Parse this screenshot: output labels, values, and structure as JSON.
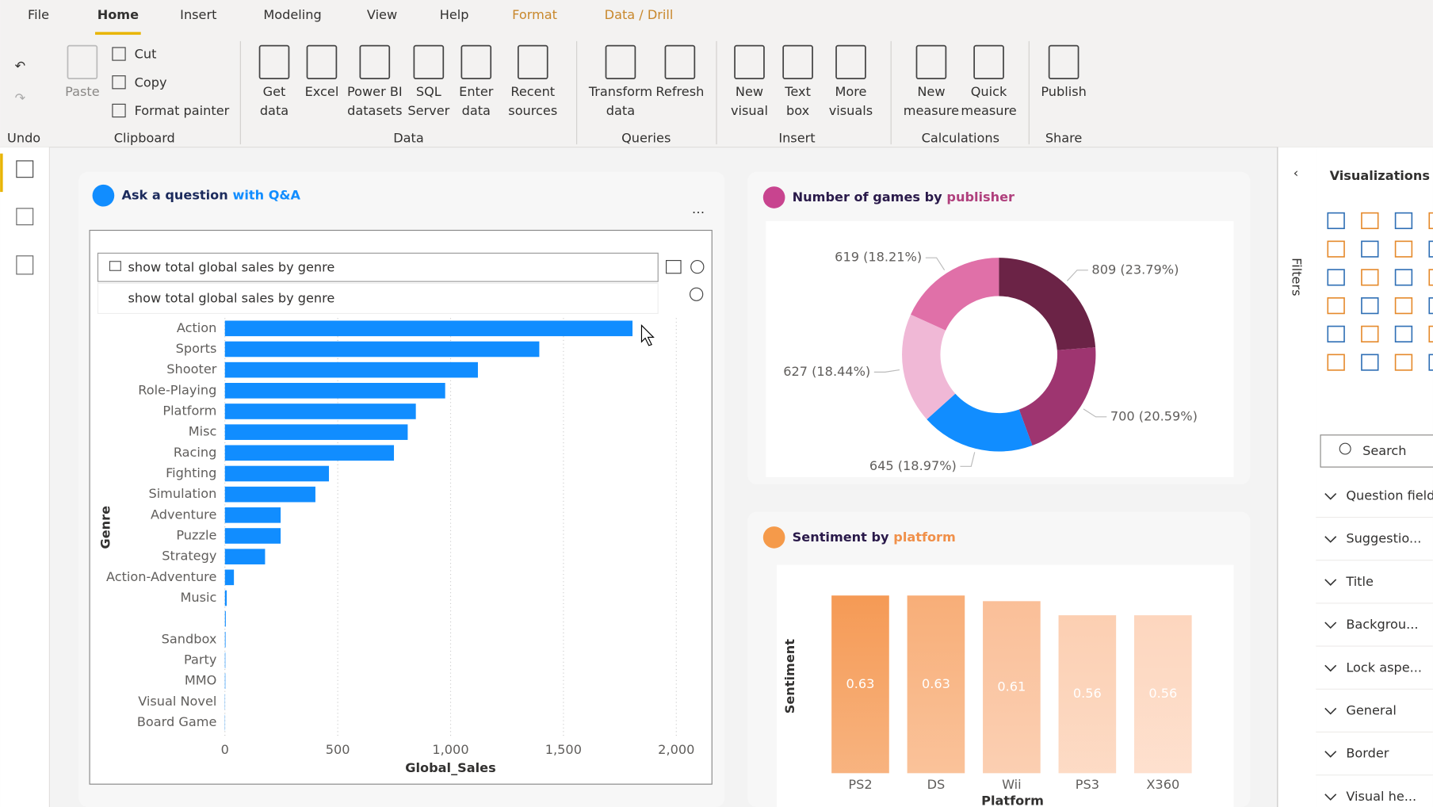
{
  "tabs": [
    "File",
    "Home",
    "Insert",
    "Modeling",
    "View",
    "Help",
    "Format",
    "Data / Drill"
  ],
  "ribbon": {
    "undo": "Undo",
    "groups": [
      {
        "name": "Clipboard",
        "buttons": [
          [
            "Paste"
          ]
        ],
        "small": [
          "Cut",
          "Copy",
          "Format painter"
        ]
      },
      {
        "name": "Data",
        "buttons": [
          [
            "Get",
            "data"
          ],
          [
            "Excel"
          ],
          [
            "Power BI",
            "datasets"
          ],
          [
            "SQL",
            "Server"
          ],
          [
            "Enter",
            "data"
          ],
          [
            "Recent",
            "sources"
          ]
        ]
      },
      {
        "name": "Queries",
        "buttons": [
          [
            "Transform",
            "data"
          ],
          [
            "Refresh"
          ]
        ]
      },
      {
        "name": "Insert",
        "buttons": [
          [
            "New",
            "visual"
          ],
          [
            "Text",
            "box"
          ],
          [
            "More",
            "visuals"
          ]
        ]
      },
      {
        "name": "Calculations",
        "buttons": [
          [
            "New",
            "measure"
          ],
          [
            "Quick",
            "measure"
          ]
        ]
      },
      {
        "name": "Share",
        "buttons": [
          [
            "Publish"
          ]
        ]
      }
    ]
  },
  "qa": {
    "query": "show total global sales by genre",
    "suggestion": "show total global sales by genre"
  },
  "right_pane": {
    "filters": "Filters",
    "title": "Visualizations",
    "search": "Search",
    "sections": [
      "Question field",
      "Suggestio...",
      "Title",
      "Backgrou...",
      "Lock aspe...",
      "General",
      "Border",
      "Visual he..."
    ]
  },
  "chart_data": [
    {
      "type": "hbar",
      "title": [
        "Ask a question",
        "with Q&A"
      ],
      "categories": [
        "Action",
        "Sports",
        "Shooter",
        "Role-Playing",
        "Platform",
        "Misc",
        "Racing",
        "Fighting",
        "Simulation",
        "Adventure",
        "Puzzle",
        "Strategy",
        "Action-Adventure",
        "Music",
        null,
        "Sandbox",
        "Party",
        "MMO",
        "Visual Novel",
        "Board Game"
      ],
      "values": [
        1806,
        1393,
        1121,
        976,
        846,
        810,
        749,
        461,
        401,
        247,
        247,
        178,
        40,
        8,
        4,
        3,
        2,
        2,
        1,
        1
      ],
      "color": "#118dff",
      "xlim": [
        0,
        2000
      ],
      "xticks": [
        0,
        500,
        {
          "value": 1000,
          "label": "1,000"
        },
        {
          "value": 1500,
          "label": "1,500"
        },
        {
          "value": 2000,
          "label": "2,000"
        }
      ],
      "xlabel": "Global_Sales",
      "ylabel": "Genre",
      "grid": true
    },
    {
      "type": "donut",
      "title": [
        "Number of games by",
        "publisher"
      ],
      "values": [
        809,
        700,
        645,
        627,
        619
      ],
      "value_labels": [
        "809 (23.79%)",
        "700 (20.59%)",
        "645 (18.97%)",
        "627 (18.44%)",
        "619 (18.21%)"
      ],
      "colors": [
        "#6b2346",
        "#9e3570",
        "#118dff",
        "#f0b8d6",
        "#e070a8"
      ]
    },
    {
      "type": "vbar",
      "title": [
        "Sentiment by",
        "platform"
      ],
      "categories": [
        "PS2",
        "DS",
        "Wii",
        "PS3",
        "X360"
      ],
      "values": [
        0.63,
        0.63,
        0.61,
        0.56,
        0.56
      ],
      "colors": [
        "#f59a55",
        "#f8ae78",
        "#fabf98",
        "#fccfb2",
        "#fdd6be"
      ],
      "ylim": [
        0,
        0.7
      ],
      "xlabel": "Platform",
      "ylabel": "Sentiment"
    }
  ]
}
